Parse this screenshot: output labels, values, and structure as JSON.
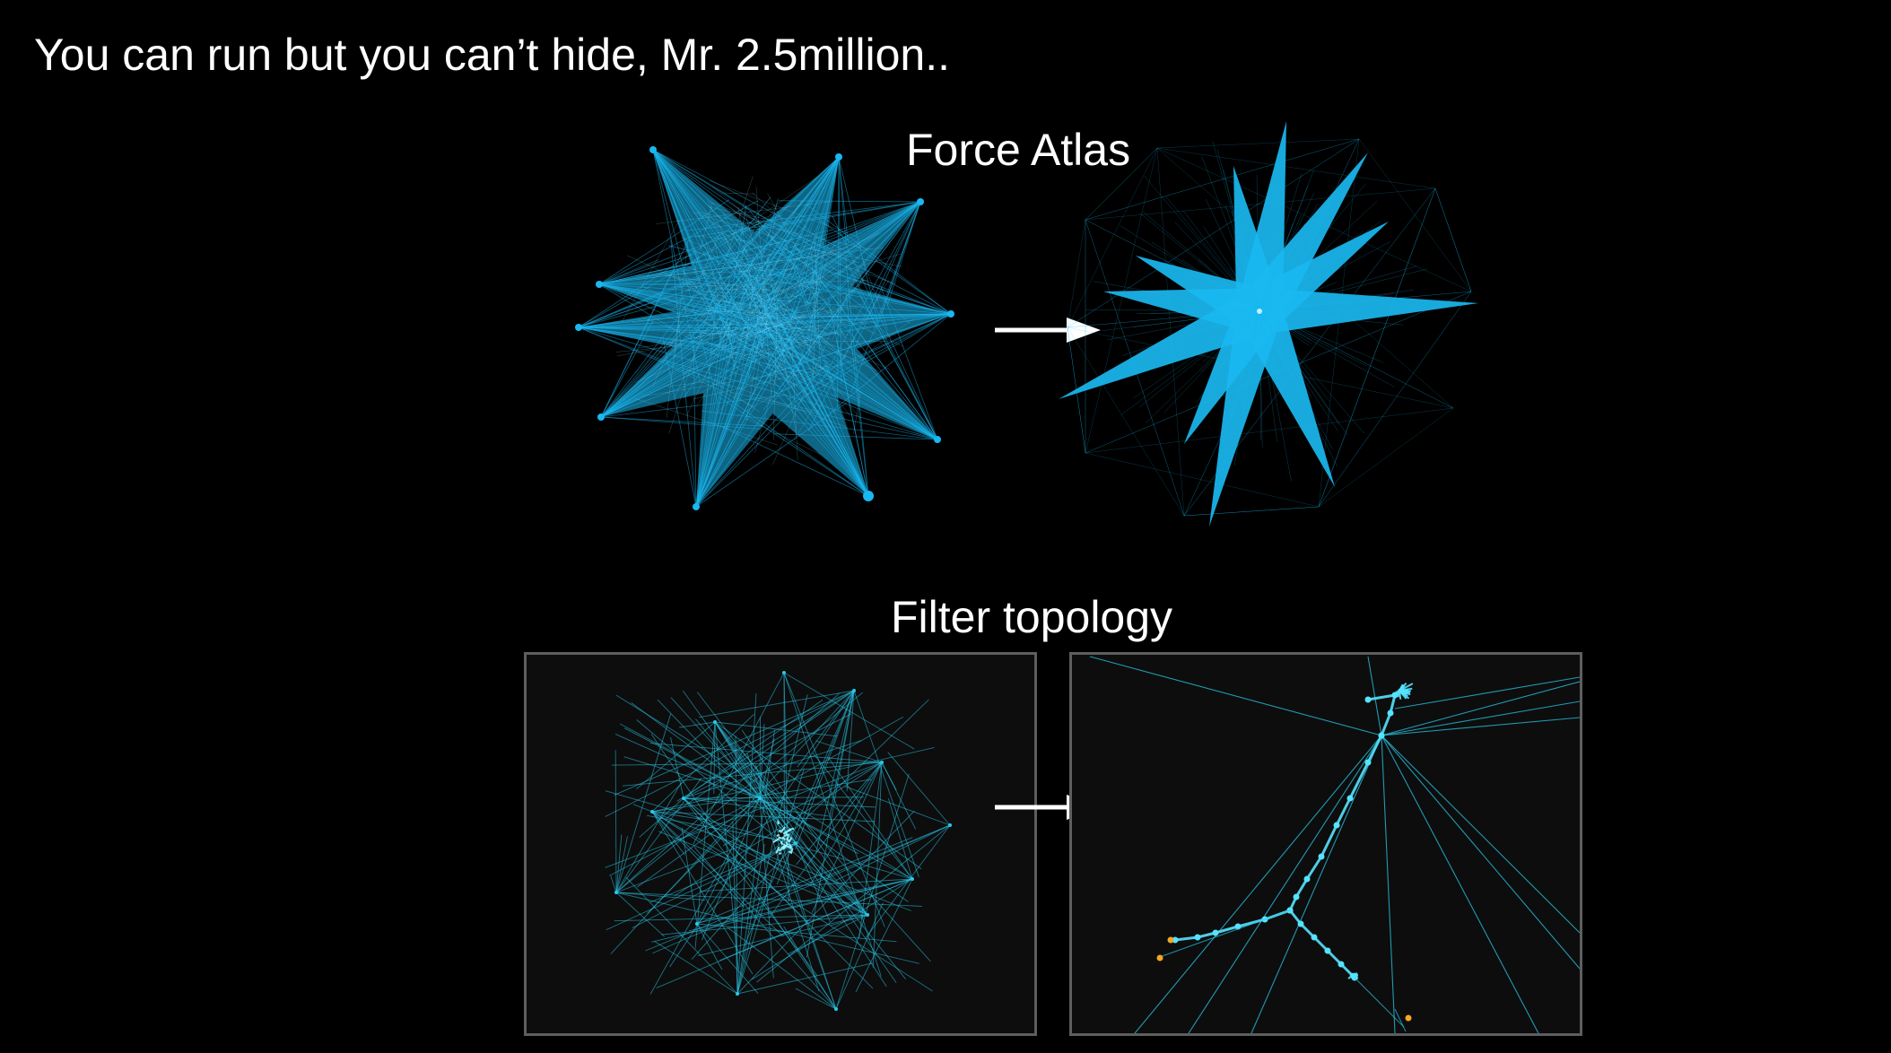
{
  "slide": {
    "title": "You can run but you can’t hide, Mr. 2.5million.."
  },
  "labels": {
    "force_atlas": "Force Atlas",
    "filter_topology": "Filter topology"
  },
  "colors": {
    "background": "#000000",
    "edge_blue": "#1ab8f0",
    "edge_cyan": "#28c9ea",
    "node_orange": "#f5a623",
    "panel_border": "#5e5e5e"
  }
}
